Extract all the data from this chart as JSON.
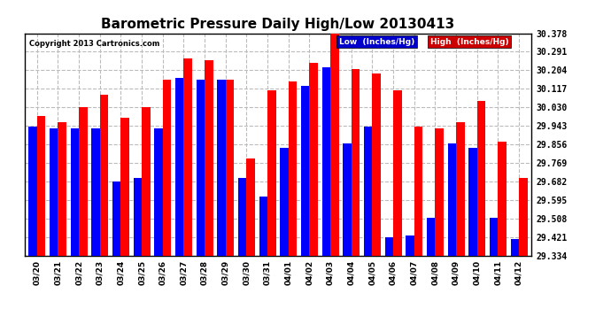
{
  "title": "Barometric Pressure Daily High/Low 20130413",
  "copyright": "Copyright 2013 Cartronics.com",
  "legend_low": "Low  (Inches/Hg)",
  "legend_high": "High  (Inches/Hg)",
  "dates": [
    "03/20",
    "03/21",
    "03/22",
    "03/23",
    "03/24",
    "03/25",
    "03/26",
    "03/27",
    "03/28",
    "03/29",
    "03/30",
    "03/31",
    "04/01",
    "04/02",
    "04/03",
    "04/04",
    "04/05",
    "04/06",
    "04/07",
    "04/08",
    "04/09",
    "04/10",
    "04/11",
    "04/12"
  ],
  "low_values": [
    29.94,
    29.93,
    29.93,
    29.93,
    29.68,
    29.7,
    29.93,
    30.17,
    30.16,
    30.16,
    29.7,
    29.61,
    29.84,
    30.13,
    30.22,
    29.86,
    29.94,
    29.42,
    29.43,
    29.51,
    29.86,
    29.84,
    29.51,
    29.41
  ],
  "high_values": [
    29.99,
    29.96,
    30.03,
    30.09,
    29.98,
    30.03,
    30.16,
    30.26,
    30.25,
    30.16,
    29.79,
    30.11,
    30.15,
    30.24,
    30.378,
    30.21,
    30.19,
    30.11,
    29.94,
    29.93,
    29.96,
    30.06,
    29.87,
    29.7
  ],
  "ymin": 29.334,
  "ymax": 30.378,
  "yticks": [
    29.334,
    29.421,
    29.508,
    29.595,
    29.682,
    29.769,
    29.856,
    29.943,
    30.03,
    30.117,
    30.204,
    30.291,
    30.378
  ],
  "bar_color_low": "#0000ff",
  "bar_color_high": "#ff0000",
  "bg_color": "#ffffff",
  "grid_color": "#bbbbbb",
  "title_fontsize": 11,
  "legend_bg_low": "#0000cc",
  "legend_bg_high": "#cc0000"
}
